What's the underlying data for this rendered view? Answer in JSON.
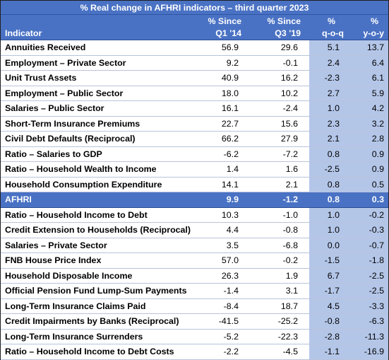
{
  "title": "% Real change in AFHRI indicators – third quarter 2023",
  "columns": {
    "sub": [
      "",
      "% Since",
      "% Since",
      "%",
      "%"
    ],
    "main": [
      "Indicator",
      "Q1 '14",
      "Q3 '19",
      "q-o-q",
      "y-o-y"
    ]
  },
  "rows": [
    {
      "label": "Annuities Received",
      "v1": "56.9",
      "v2": "29.6",
      "q": "5.1",
      "y": "13.7"
    },
    {
      "label": "Employment – Private Sector",
      "v1": "9.2",
      "v2": "-0.1",
      "q": "2.4",
      "y": "6.4"
    },
    {
      "label": "Unit Trust Assets",
      "v1": "40.9",
      "v2": "16.2",
      "q": "-2.3",
      "y": "6.1"
    },
    {
      "label": "Employment – Public Sector",
      "v1": "18.0",
      "v2": "10.2",
      "q": "2.7",
      "y": "5.9"
    },
    {
      "label": "Salaries – Public Sector",
      "v1": "16.1",
      "v2": "-2.4",
      "q": "1.0",
      "y": "4.2"
    },
    {
      "label": "Short-Term Insurance Premiums",
      "v1": "22.7",
      "v2": "15.6",
      "q": "2.3",
      "y": "3.2"
    },
    {
      "label": "Civil Debt Defaults (Reciprocal)",
      "v1": "66.2",
      "v2": "27.9",
      "q": "2.1",
      "y": "2.8"
    },
    {
      "label": "Ratio – Salaries to GDP",
      "v1": "-6.2",
      "v2": "-7.2",
      "q": "0.8",
      "y": "0.9"
    },
    {
      "label": "Ratio – Household Wealth to Income",
      "v1": "1.4",
      "v2": "1.6",
      "q": "-2.5",
      "y": "0.9"
    },
    {
      "label": "Household Consumption Expenditure",
      "v1": "14.1",
      "v2": "2.1",
      "q": "0.8",
      "y": "0.5"
    },
    {
      "label": "AFHRI",
      "v1": "9.9",
      "v2": "-1.2",
      "q": "0.8",
      "y": "0.3",
      "highlight": true
    },
    {
      "label": "Ratio – Household Income to Debt",
      "v1": "10.3",
      "v2": "-1.0",
      "q": "1.0",
      "y": "-0.2"
    },
    {
      "label": "Credit Extension to Households (Reciprocal)",
      "v1": "4.4",
      "v2": "-0.8",
      "q": "1.0",
      "y": "-0.3"
    },
    {
      "label": "Salaries – Private Sector",
      "v1": "3.5",
      "v2": "-6.8",
      "q": "0.0",
      "y": "-0.7"
    },
    {
      "label": "FNB House Price Index",
      "v1": "57.0",
      "v2": "-0.2",
      "q": "-1.5",
      "y": "-1.8"
    },
    {
      "label": "Household Disposable Income",
      "v1": "26.3",
      "v2": "1.9",
      "q": "6.7",
      "y": "-2.5"
    },
    {
      "label": "Official Pension Fund Lump-Sum Payments",
      "v1": "-1.4",
      "v2": "3.1",
      "q": "-1.7",
      "y": "-2.5"
    },
    {
      "label": "Long-Term Insurance Claims Paid",
      "v1": "-8.4",
      "v2": "18.7",
      "q": "4.5",
      "y": "-3.3"
    },
    {
      "label": "Credit Impairments by Banks (Reciprocal)",
      "v1": "-41.5",
      "v2": "-25.2",
      "q": "-0.8",
      "y": "-6.3"
    },
    {
      "label": "Long-Term Insurance Surrenders",
      "v1": "-5.2",
      "v2": "-22.3",
      "q": "-2.8",
      "y": "-11.3"
    },
    {
      "label": "Ratio – Household Income to Debt Costs",
      "v1": "-2.2",
      "v2": "-4.5",
      "q": "-1.1",
      "y": "-16.9"
    }
  ],
  "colors": {
    "header_bg": "#4a72c4",
    "highlight_col_bg": "#b4c6e8"
  }
}
